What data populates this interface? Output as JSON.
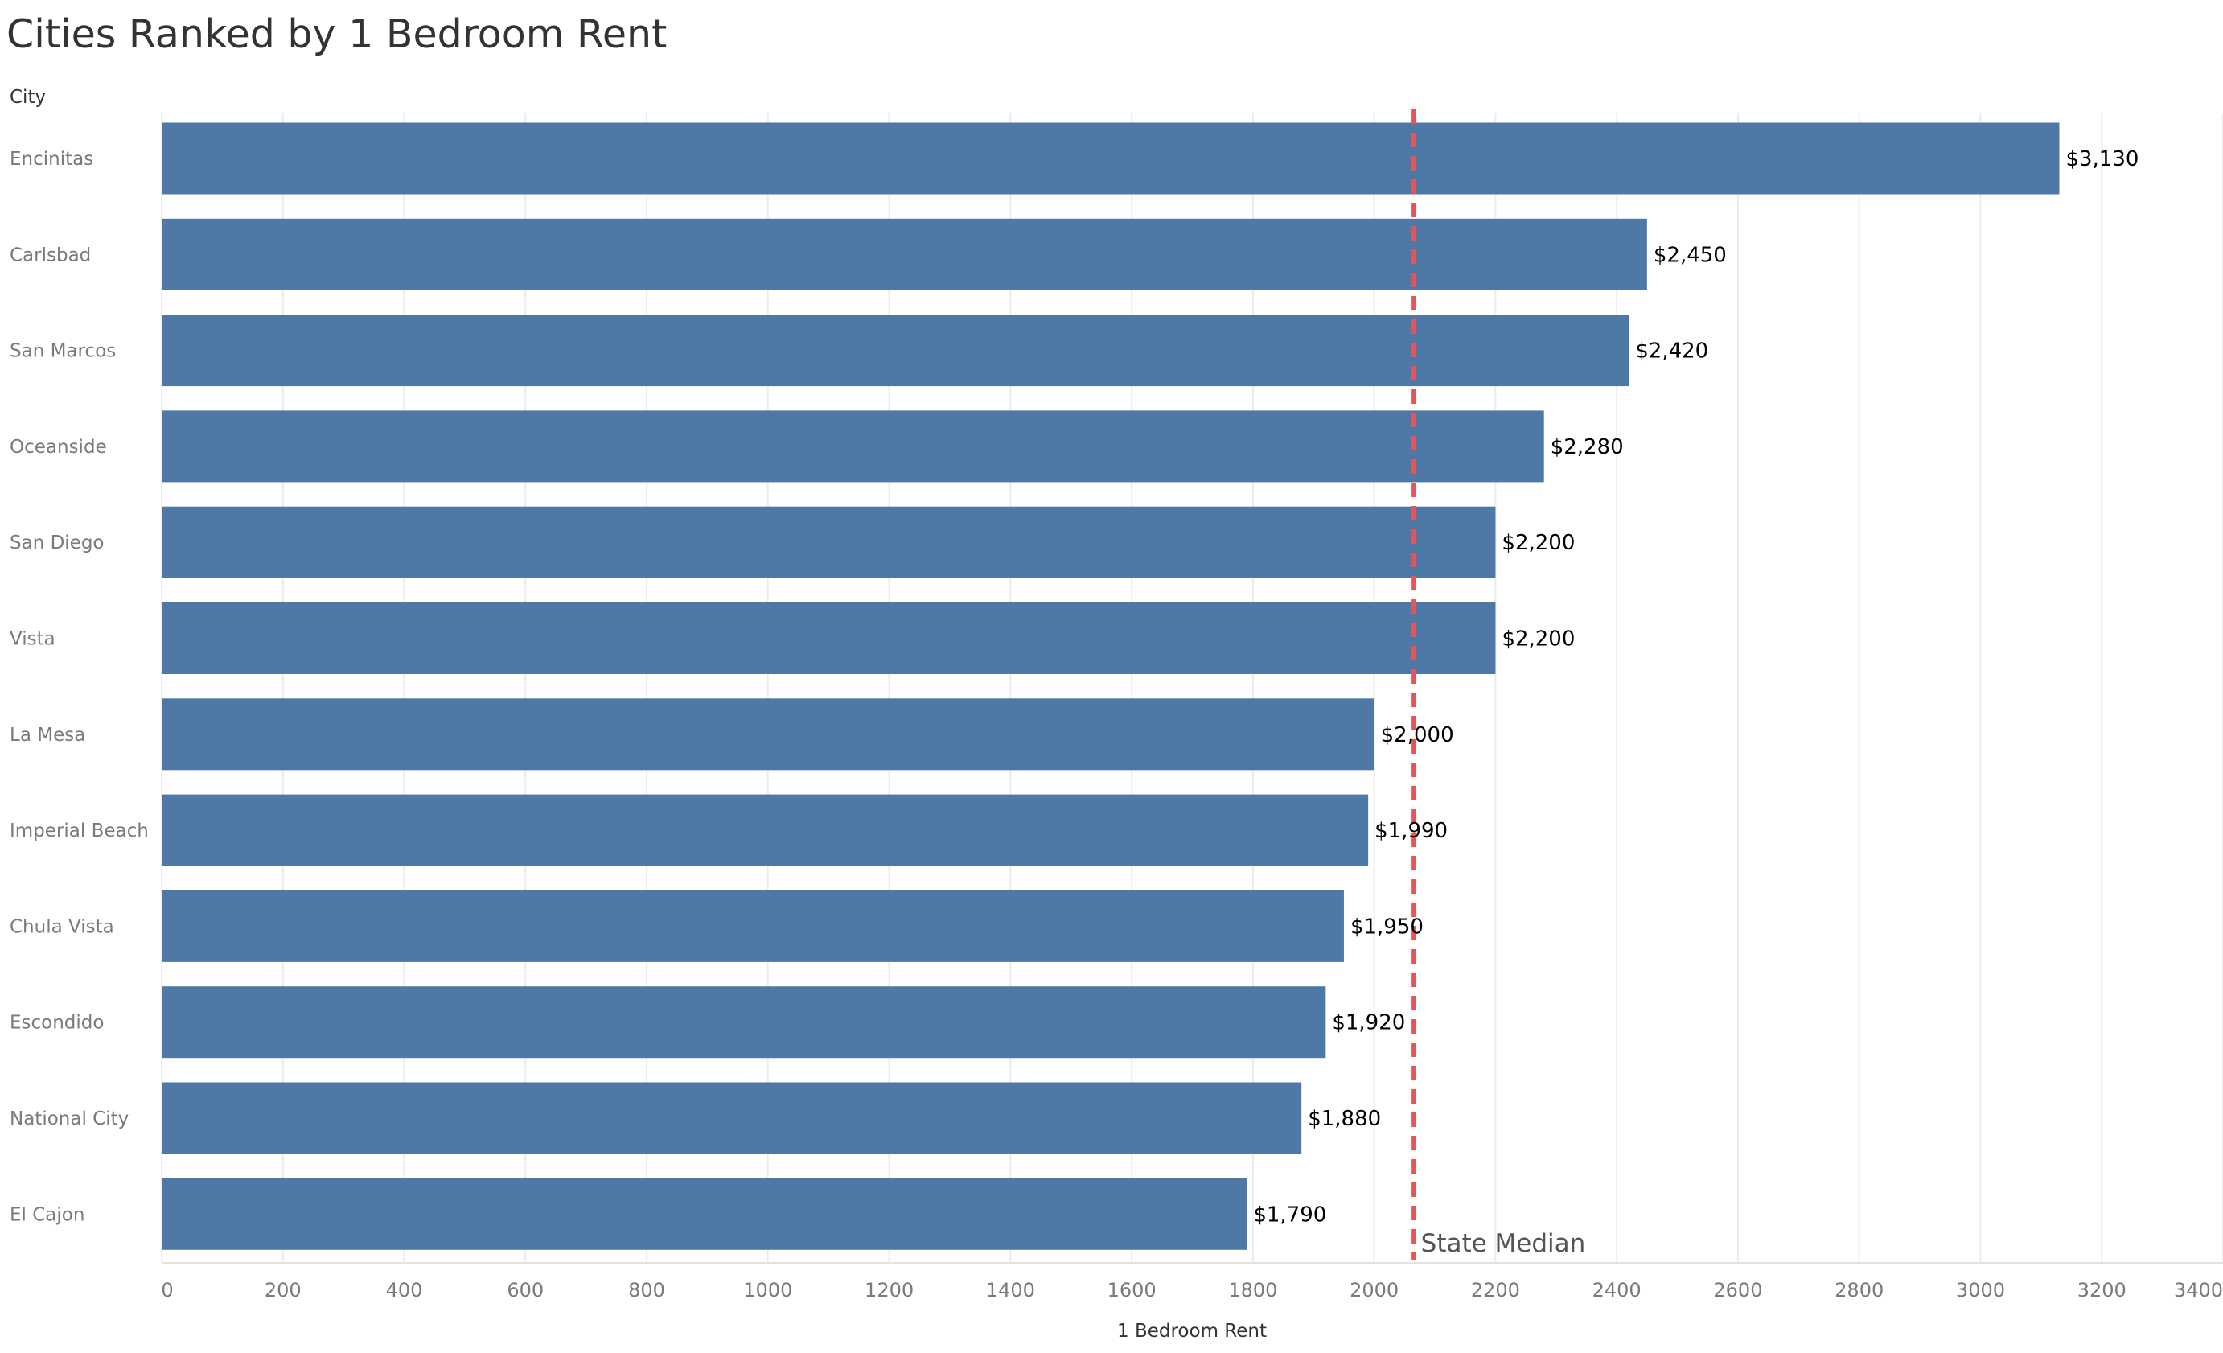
{
  "chart_data": {
    "type": "bar",
    "orientation": "horizontal",
    "title": "Cities Ranked by 1 Bedroom Rent",
    "row_header": "City",
    "xlabel": "1 Bedroom Rent",
    "xlim": [
      0,
      3400
    ],
    "xticks": [
      0,
      200,
      400,
      600,
      800,
      1000,
      1200,
      1400,
      1600,
      1800,
      2000,
      2200,
      2400,
      2600,
      2800,
      3000,
      3200,
      3400
    ],
    "grid": true,
    "bar_color": "#4e79a7",
    "categories": [
      "Encinitas",
      "Carlsbad",
      "San Marcos",
      "Oceanside",
      "San Diego",
      "Vista",
      "La Mesa",
      "Imperial Beach",
      "Chula Vista",
      "Escondido",
      "National City",
      "El Cajon"
    ],
    "values": [
      3130,
      2450,
      2420,
      2280,
      2200,
      2200,
      2000,
      1990,
      1950,
      1920,
      1880,
      1790
    ],
    "value_labels": [
      "$3,130",
      "$2,450",
      "$2,420",
      "$2,280",
      "$2,200",
      "$2,200",
      "$2,000",
      "$1,990",
      "$1,950",
      "$1,920",
      "$1,880",
      "$1,790"
    ],
    "reference_line": {
      "label": "State Median",
      "value": 2065,
      "style": "dashed",
      "color": "#e15759"
    }
  }
}
